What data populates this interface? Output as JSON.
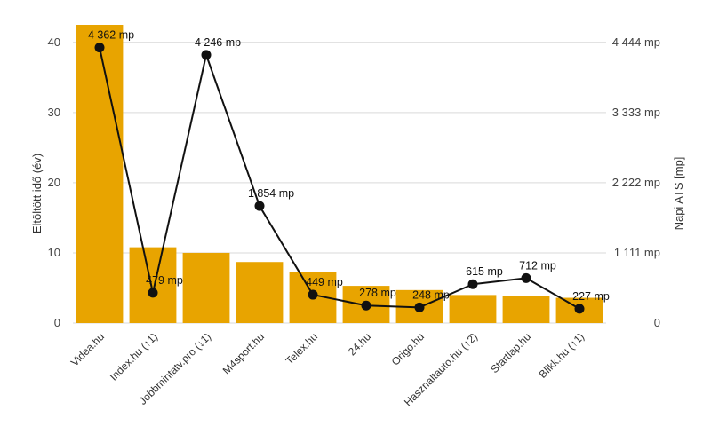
{
  "chart_data": {
    "type": "bar+line",
    "categories": [
      "Videa.hu",
      "Index.hu (↑1)",
      "Jobbmintatv.pro (↓1)",
      "M4sport.hu",
      "Telex.hu",
      "24.hu",
      "Origo.hu",
      "Hasznaltauto.hu (↑2)",
      "Startlap.hu",
      "Blikk.hu (↑1)"
    ],
    "series": [
      {
        "type": "bar",
        "axis": "left",
        "color": "#E8A400",
        "values": [
          42.5,
          10.8,
          10.0,
          8.7,
          7.3,
          5.3,
          4.7,
          4.0,
          3.9,
          3.6
        ]
      },
      {
        "type": "line",
        "axis": "right",
        "color": "#111111",
        "values": [
          4362,
          479,
          4246,
          1854,
          449,
          278,
          248,
          615,
          712,
          227
        ],
        "labels": [
          "4 362 mp",
          "479 mp",
          "4 246 mp",
          "1 854 mp",
          "449 mp",
          "278 mp",
          "248 mp",
          "615 mp",
          "712 mp",
          "227 mp"
        ]
      }
    ],
    "ylabel": "Eltöltött idő (év)",
    "ylabel_right": "Napi ATS [mp]",
    "ylim": [
      0,
      42.5
    ],
    "yticks": [
      0,
      10,
      20,
      30,
      40
    ],
    "ylim_right": [
      0,
      4722
    ],
    "yticks_right": [
      0,
      1111,
      2222,
      3333,
      4444
    ],
    "ytick_labels_right": [
      "0",
      "1 111 mp",
      "2 222 mp",
      "3 333 mp",
      "4 444 mp"
    ],
    "grid": true,
    "legend": "none"
  }
}
